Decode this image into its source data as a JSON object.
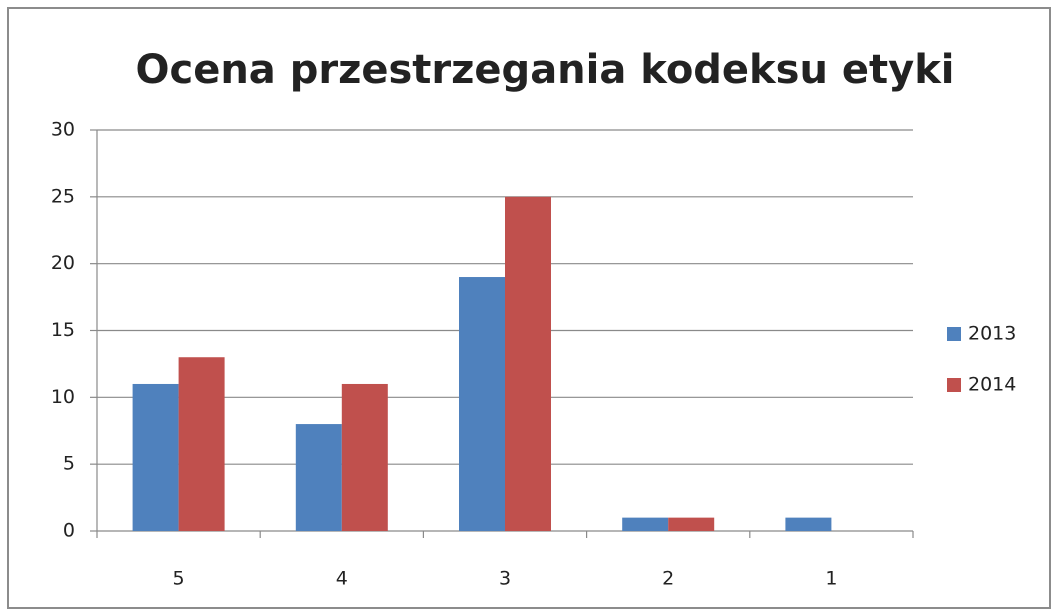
{
  "chart_data": {
    "type": "bar",
    "title": "Ocena przestrzegania kodeksu etyki",
    "categories": [
      "5",
      "4",
      "3",
      "2",
      "1"
    ],
    "series": [
      {
        "name": "2013",
        "color": "#4f81bd",
        "values": [
          11,
          8,
          19,
          1,
          1
        ]
      },
      {
        "name": "2014",
        "color": "#c0504d",
        "values": [
          13,
          11,
          25,
          1,
          0
        ]
      }
    ],
    "ylim": [
      0,
      30
    ],
    "yticks": [
      0,
      5,
      10,
      15,
      20,
      25,
      30
    ],
    "grid": true,
    "legend": "right"
  }
}
